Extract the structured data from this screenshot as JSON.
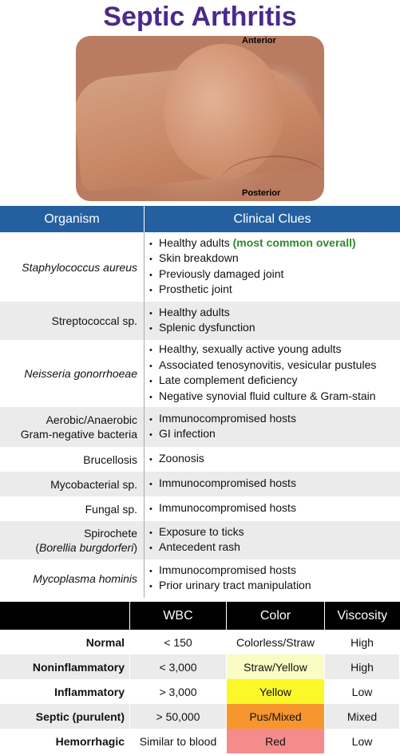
{
  "title": "Septic Arthritis",
  "photo": {
    "label_anterior": "Anterior",
    "label_posterior": "Posterior"
  },
  "organism_table": {
    "headers": [
      "Organism",
      "Clinical Clues"
    ],
    "rows": [
      {
        "organism": "Staphylococcus aureus",
        "clues": [
          "Healthy adults",
          "Skin breakdown",
          "Previously damaged joint",
          "Prosthetic joint"
        ],
        "highlight": "(most common overall)"
      },
      {
        "organism": "Streptococcal sp.",
        "clues": [
          "Healthy adults",
          "Splenic dysfunction"
        ]
      },
      {
        "organism": "Neisseria gonorrhoeae",
        "clues": [
          "Healthy, sexually active young adults",
          "Associated tenosynovitis, vesicular pustules",
          "Late complement deficiency",
          "Negative synovial fluid culture & Gram-stain"
        ]
      },
      {
        "organism_line1": "Aerobic/Anaerobic",
        "organism_line2": "Gram-negative bacteria",
        "clues": [
          "Immunocompromised hosts",
          "GI infection"
        ]
      },
      {
        "organism": "Brucellosis",
        "clues": [
          "Zoonosis"
        ]
      },
      {
        "organism": "Mycobacterial sp.",
        "clues": [
          "Immunocompromised hosts"
        ]
      },
      {
        "organism": "Fungal sp.",
        "clues": [
          "Immunocompromised hosts"
        ]
      },
      {
        "organism_line1": "Spirochete",
        "organism_line2": "Borellia burgdorferi",
        "clues": [
          "Exposure to ticks",
          "Antecedent rash"
        ]
      },
      {
        "organism": "Mycoplasma hominis",
        "clues": [
          "Immunocompromised hosts",
          "Prior urinary tract manipulation"
        ]
      }
    ]
  },
  "fluid_table": {
    "headers": [
      "",
      "WBC",
      "Color",
      "Viscosity"
    ],
    "rows": [
      {
        "type": "Normal",
        "wbc": "< 150",
        "color": "Colorless/Straw",
        "viscosity": "High",
        "swatch": ""
      },
      {
        "type": "Noninflammatory",
        "wbc": "< 3,000",
        "color": "Straw/Yellow",
        "viscosity": "High",
        "swatch": "#fbfbc4"
      },
      {
        "type": "Inflammatory",
        "wbc": "> 3,000",
        "color": "Yellow",
        "viscosity": "Low",
        "swatch": "#fbf82a"
      },
      {
        "type": "Septic (purulent)",
        "wbc": "> 50,000",
        "color": "Pus/Mixed",
        "viscosity": "Mixed",
        "swatch": "#f7962f"
      },
      {
        "type": "Hemorrhagic",
        "wbc": "Similar to blood",
        "color": "Red",
        "viscosity": "Low",
        "swatch": "#f58c8c"
      }
    ]
  }
}
